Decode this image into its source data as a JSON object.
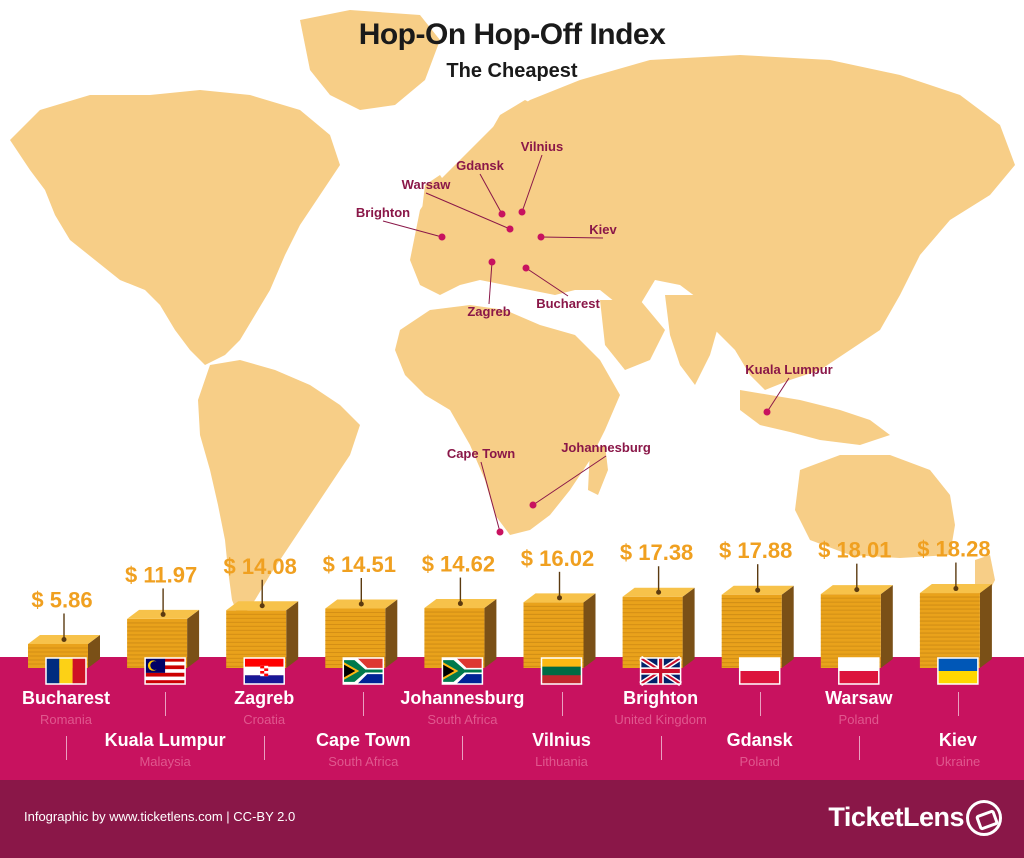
{
  "colors": {
    "land": "#f7ce87",
    "accent": "#c8125f",
    "footer": "#8a1748",
    "price": "#f0a020",
    "coin": "#e9a21b",
    "coin_side": "#7a5017"
  },
  "chart_data": {
    "type": "bar",
    "title": "Hop-On Hop-Off Index",
    "subtitle": "The Cheapest",
    "categories": [
      "Bucharest",
      "Kuala Lumpur",
      "Zagreb",
      "Cape Town",
      "Johannesburg",
      "Vilnius",
      "Brighton",
      "Gdansk",
      "Warsaw",
      "Kiev"
    ],
    "countries": [
      "Romania",
      "Malaysia",
      "Croatia",
      "South Africa",
      "South Africa",
      "Lithuania",
      "United Kingdom",
      "Poland",
      "Poland",
      "Ukraine"
    ],
    "values": [
      5.86,
      11.97,
      14.08,
      14.51,
      14.62,
      16.02,
      17.38,
      17.88,
      18.01,
      18.28
    ],
    "price_labels": [
      "$ 5.86",
      "$ 11.97",
      "$ 14.08",
      "$ 14.51",
      "$ 14.62",
      "$ 16.02",
      "$ 17.38",
      "$ 17.88",
      "$ 18.01",
      "$ 18.28"
    ],
    "currency": "USD",
    "flags": [
      "romania",
      "malaysia",
      "croatia",
      "south-africa",
      "south-africa",
      "lithuania",
      "united-kingdom",
      "poland",
      "poland",
      "ukraine"
    ]
  },
  "map_labels": [
    {
      "city": "Vilnius"
    },
    {
      "city": "Gdansk"
    },
    {
      "city": "Warsaw"
    },
    {
      "city": "Brighton"
    },
    {
      "city": "Kiev"
    },
    {
      "city": "Bucharest"
    },
    {
      "city": "Zagreb"
    },
    {
      "city": "Kuala Lumpur"
    },
    {
      "city": "Cape Town"
    },
    {
      "city": "Johannesburg"
    }
  ],
  "footer": {
    "credit": "Infographic by www.ticketlens.com | CC-BY 2.0",
    "brand": "TicketLens",
    "brand_icon": "ticket-lens-icon"
  }
}
